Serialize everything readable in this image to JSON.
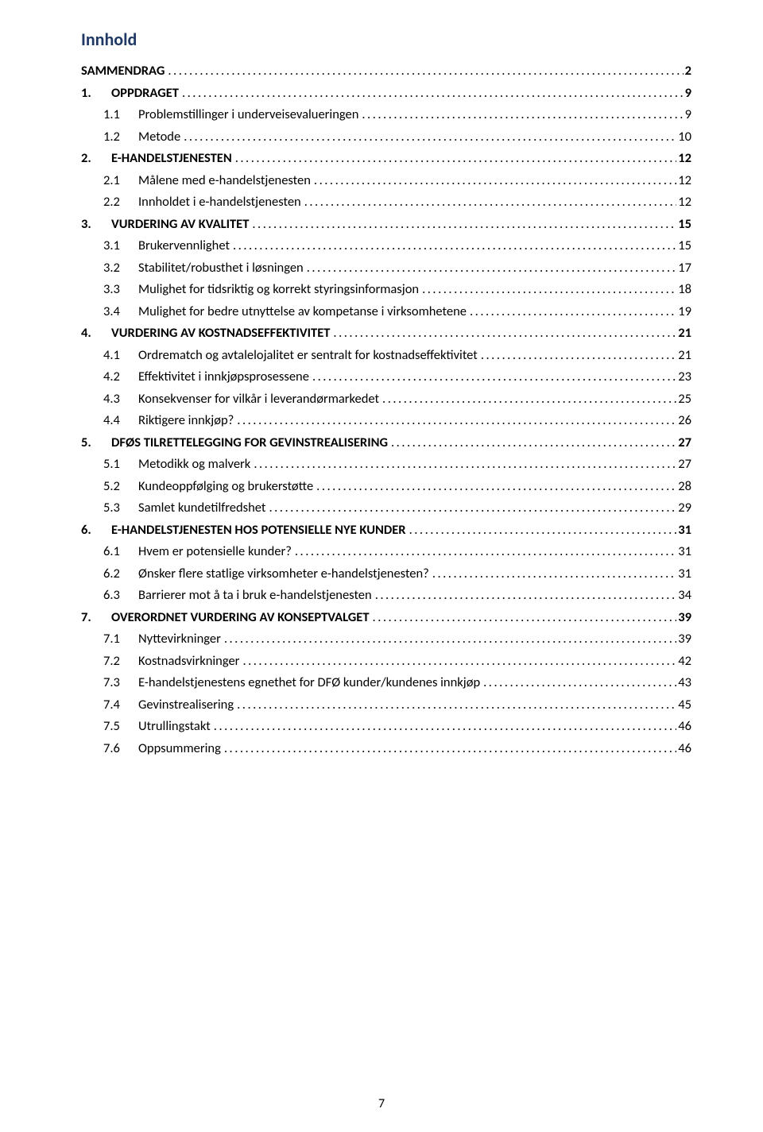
{
  "title": "Innhold",
  "page_number": "7",
  "entries": [
    {
      "level": "top",
      "num": "",
      "label": "SAMMENDRAG",
      "page": "2"
    },
    {
      "level": "sec",
      "num": "1.",
      "label": "OPPDRAGET",
      "page": "9"
    },
    {
      "level": "sub",
      "num": "1.1",
      "label": "Problemstillinger i underveisevalueringen",
      "page": "9"
    },
    {
      "level": "sub",
      "num": "1.2",
      "label": "Metode",
      "page": "10"
    },
    {
      "level": "sec",
      "num": "2.",
      "label": "E-HANDELSTJENESTEN",
      "page": "12"
    },
    {
      "level": "sub",
      "num": "2.1",
      "label": "Målene med e-handelstjenesten",
      "page": "12"
    },
    {
      "level": "sub",
      "num": "2.2",
      "label": "Innholdet i e-handelstjenesten",
      "page": "12"
    },
    {
      "level": "sec",
      "num": "3.",
      "label": "VURDERING AV KVALITET",
      "page": "15"
    },
    {
      "level": "sub",
      "num": "3.1",
      "label": "Brukervennlighet",
      "page": "15"
    },
    {
      "level": "sub",
      "num": "3.2",
      "label": "Stabilitet/robusthet i løsningen",
      "page": "17"
    },
    {
      "level": "sub",
      "num": "3.3",
      "label": "Mulighet for tidsriktig og korrekt styringsinformasjon",
      "page": "18"
    },
    {
      "level": "sub",
      "num": "3.4",
      "label": "Mulighet for bedre utnyttelse av kompetanse i virksomhetene",
      "page": "19"
    },
    {
      "level": "sec",
      "num": "4.",
      "label": "VURDERING AV KOSTNADSEFFEKTIVITET",
      "page": "21"
    },
    {
      "level": "sub",
      "num": "4.1",
      "label": "Ordrematch og avtalelojalitet er sentralt for kostnadseffektivitet",
      "page": "21"
    },
    {
      "level": "sub",
      "num": "4.2",
      "label": "Effektivitet i innkjøpsprosessene",
      "page": "23"
    },
    {
      "level": "sub",
      "num": "4.3",
      "label": "Konsekvenser for vilkår i leverandørmarkedet",
      "page": "25"
    },
    {
      "level": "sub",
      "num": "4.4",
      "label": "Riktigere innkjøp?",
      "page": "26"
    },
    {
      "level": "sec",
      "num": "5.",
      "label": "DFØS TILRETTELEGGING FOR GEVINSTREALISERING",
      "page": "27"
    },
    {
      "level": "sub",
      "num": "5.1",
      "label": "Metodikk og malverk",
      "page": "27"
    },
    {
      "level": "sub",
      "num": "5.2",
      "label": "Kundeoppfølging og brukerstøtte",
      "page": "28"
    },
    {
      "level": "sub",
      "num": "5.3",
      "label": "Samlet kundetilfredshet",
      "page": "29"
    },
    {
      "level": "sec",
      "num": "6.",
      "label": "E-HANDELSTJENESTEN HOS POTENSIELLE NYE KUNDER",
      "page": "31"
    },
    {
      "level": "sub",
      "num": "6.1",
      "label": "Hvem er potensielle kunder?",
      "page": "31"
    },
    {
      "level": "sub",
      "num": "6.2",
      "label": "Ønsker flere statlige virksomheter e-handelstjenesten?",
      "page": "31"
    },
    {
      "level": "sub",
      "num": "6.3",
      "label": "Barrierer mot å ta i bruk e-handelstjenesten",
      "page": "34"
    },
    {
      "level": "sec",
      "num": "7.",
      "label": "OVERORDNET VURDERING AV KONSEPTVALGET",
      "page": "39"
    },
    {
      "level": "sub",
      "num": "7.1",
      "label": "Nyttevirkninger",
      "page": "39"
    },
    {
      "level": "sub",
      "num": "7.2",
      "label": "Kostnadsvirkninger",
      "page": "42"
    },
    {
      "level": "sub",
      "num": "7.3",
      "label": "E-handelstjenestens egnethet for DFØ kunder/kundenes innkjøp",
      "page": "43"
    },
    {
      "level": "sub",
      "num": "7.4",
      "label": "Gevinstrealisering",
      "page": "45"
    },
    {
      "level": "sub",
      "num": "7.5",
      "label": "Utrullingstakt",
      "page": "46"
    },
    {
      "level": "sub",
      "num": "7.6",
      "label": "Oppsummering",
      "page": "46"
    }
  ]
}
